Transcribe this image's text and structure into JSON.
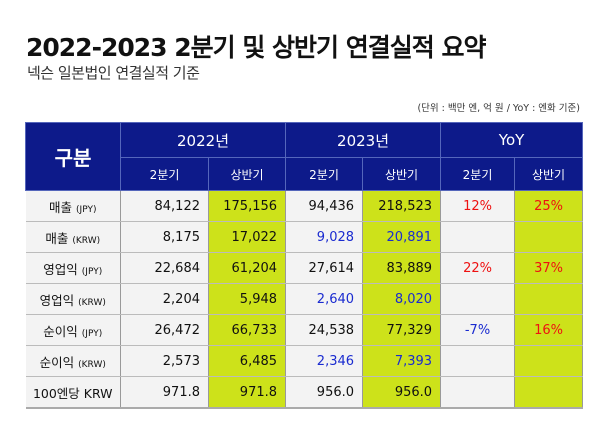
{
  "title": "2022-2023 2분기 및 상반기 연결실적 요약",
  "subtitle": "넥슨 일본법인 연결실적 기준",
  "unit_note": "(단위 : 백만 엔, 억 원 / YoY : 엔화 기준)",
  "table": {
    "corner": "구분",
    "groups": [
      "2022년",
      "2023년",
      "YoY"
    ],
    "subheaders": [
      "2분기",
      "상반기",
      "2분기",
      "상반기",
      "2분기",
      "상반기"
    ],
    "rows": [
      {
        "label": "매출",
        "unit": "(JPY)",
        "values": [
          "84,122",
          "175,156",
          "94,436",
          "218,523",
          "12%",
          "25%"
        ]
      },
      {
        "label": "매출",
        "unit": "(KRW)",
        "values": [
          "8,175",
          "17,022",
          "9,028",
          "20,891",
          "",
          ""
        ]
      },
      {
        "label": "영업익",
        "unit": "(JPY)",
        "values": [
          "22,684",
          "61,204",
          "27,614",
          "83,889",
          "22%",
          "37%"
        ]
      },
      {
        "label": "영업익",
        "unit": "(KRW)",
        "values": [
          "2,204",
          "5,948",
          "2,640",
          "8,020",
          "",
          ""
        ]
      },
      {
        "label": "순이익",
        "unit": "(JPY)",
        "values": [
          "26,472",
          "66,733",
          "24,538",
          "77,329",
          "-7%",
          "16%"
        ]
      },
      {
        "label": "순이익",
        "unit": "(KRW)",
        "values": [
          "2,573",
          "6,485",
          "2,346",
          "7,393",
          "",
          ""
        ]
      },
      {
        "label": "100엔당 KRW",
        "unit": "",
        "values": [
          "971.8",
          "971.8",
          "956.0",
          "956.0",
          "",
          ""
        ]
      }
    ]
  },
  "colors": {
    "header": "#0d1a8a",
    "highlight": "#cde21a",
    "positive": "#ee1111",
    "negative": "#1a2bd0",
    "krw_2023": "#1a2bd0"
  }
}
